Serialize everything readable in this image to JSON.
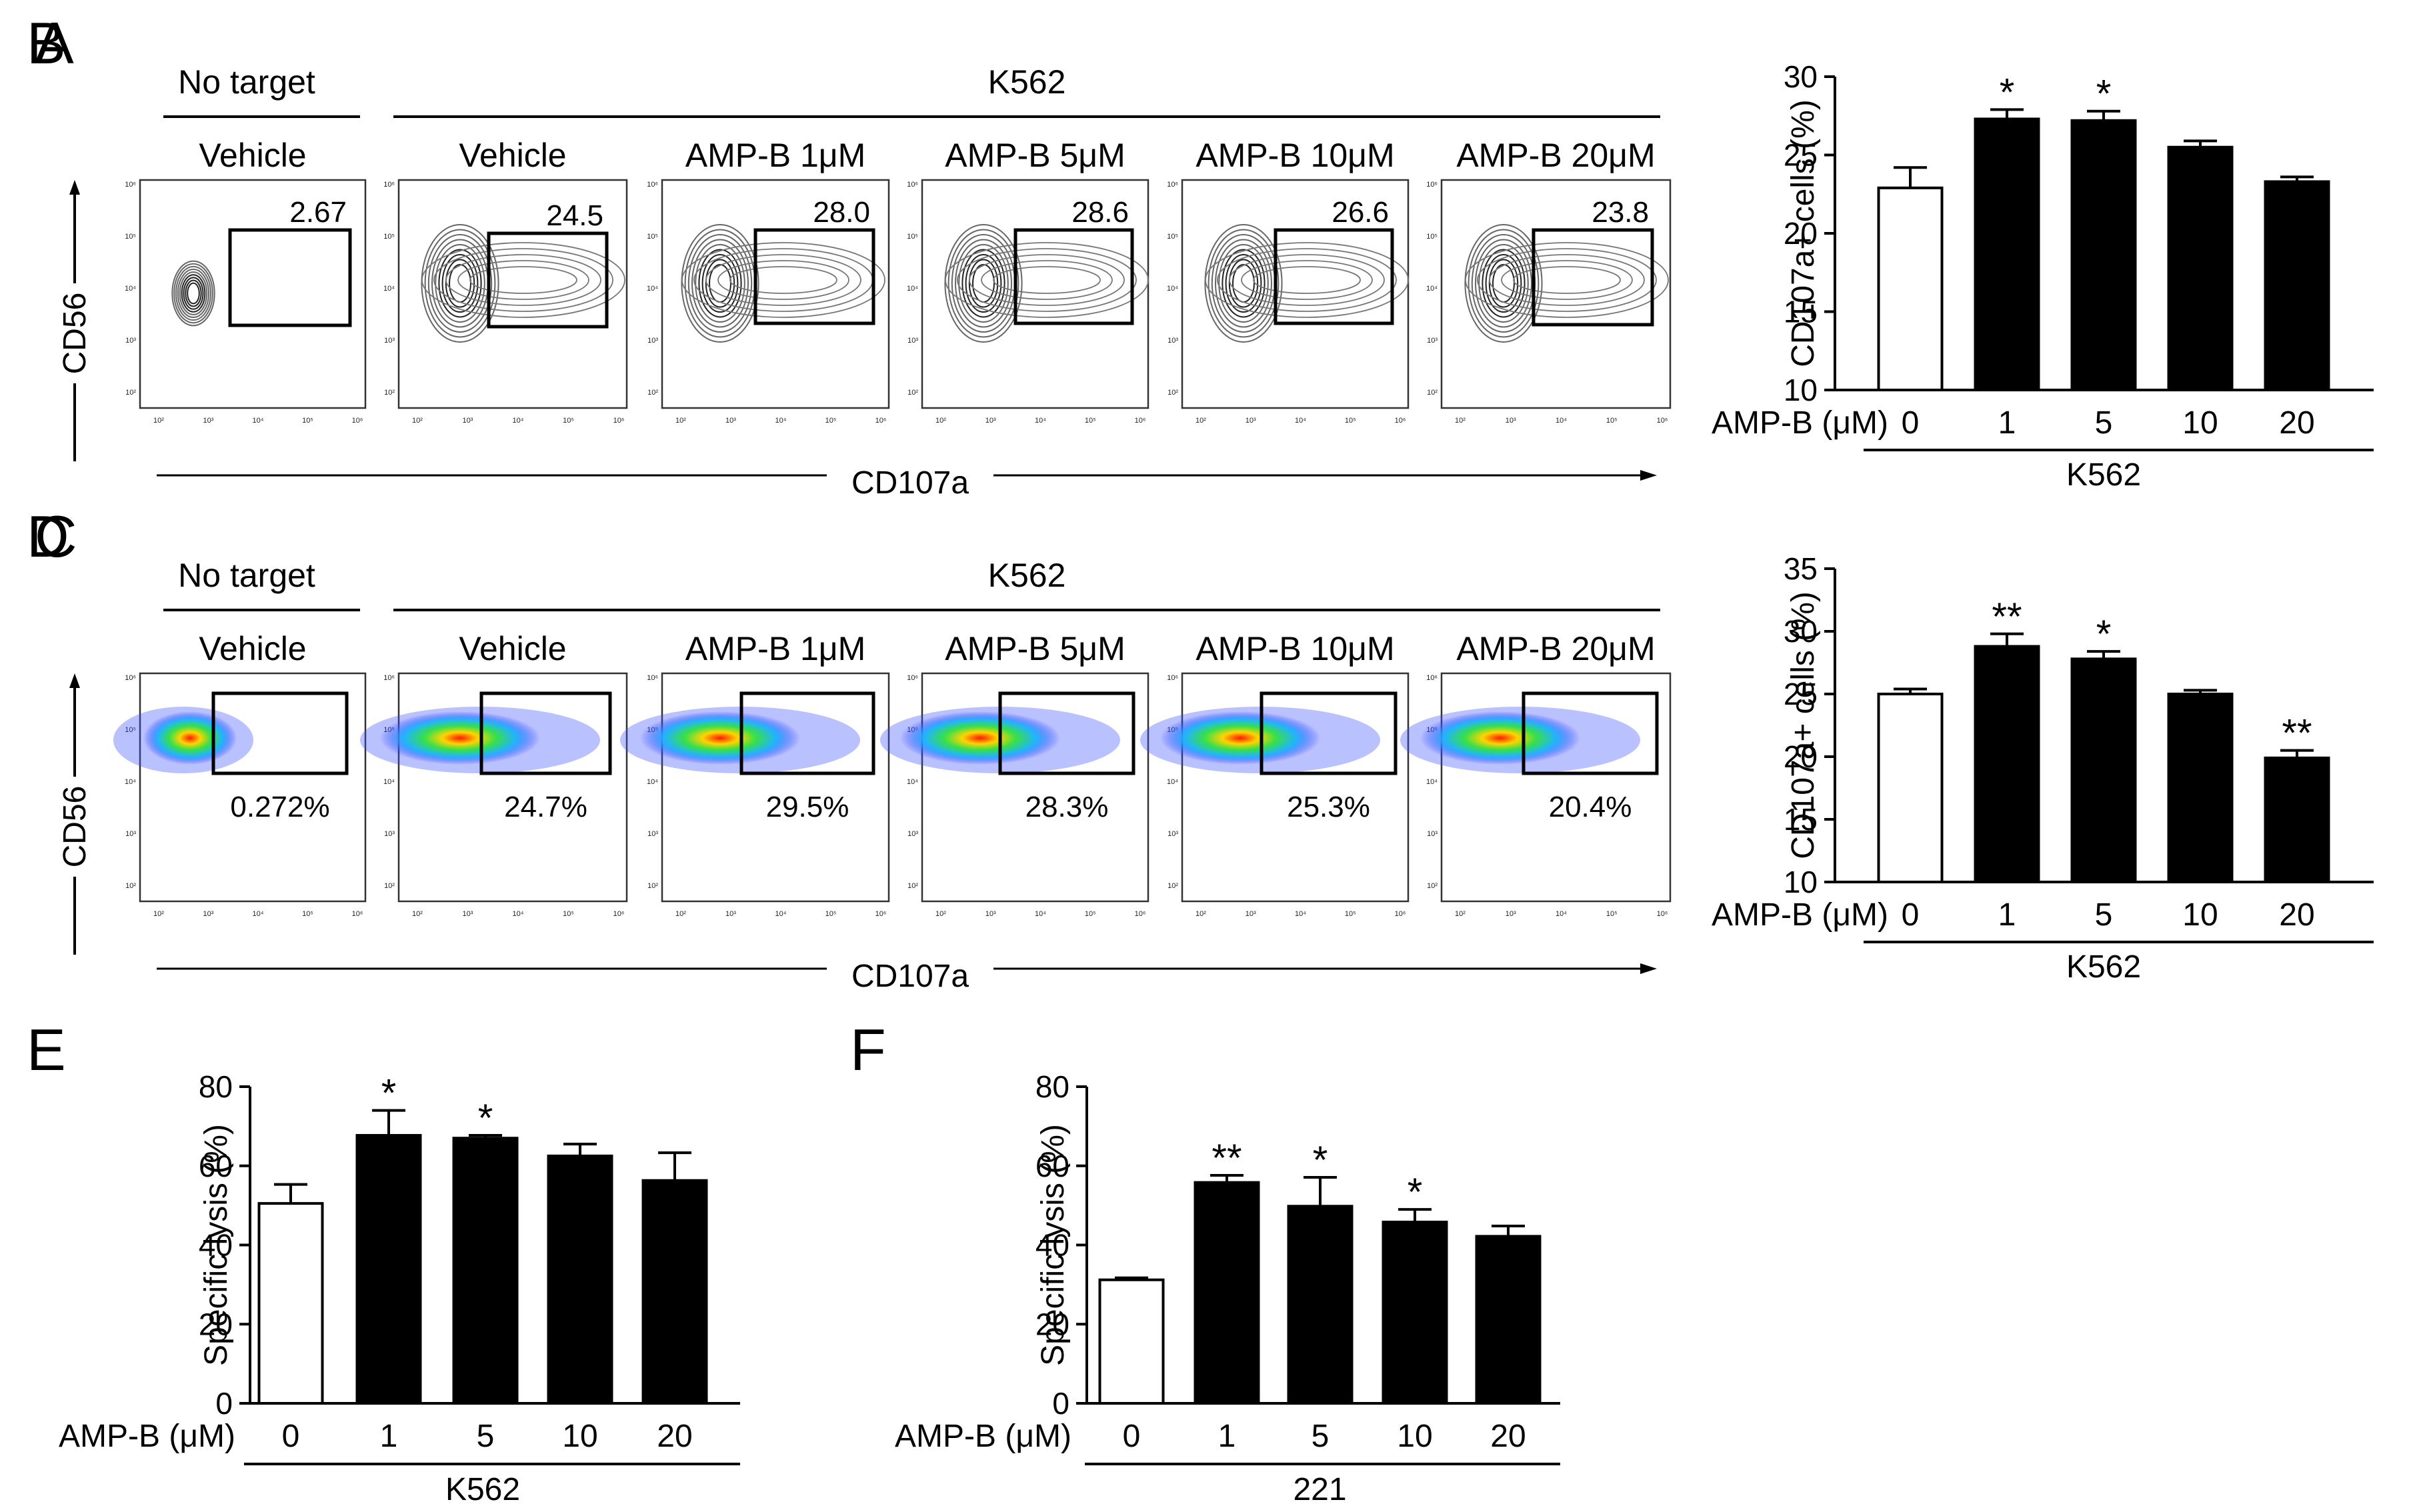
{
  "panels": [
    {
      "id": "A",
      "type": "flow",
      "plot": "contour",
      "headers": {
        "no_target": "No target",
        "target": "K562"
      },
      "columns": [
        "Vehicle",
        "Vehicle",
        "AMP-B 1μM",
        "AMP-B 5μM",
        "AMP-B 10μM",
        "AMP-B 20μM"
      ],
      "values": [
        "2.67",
        "24.5",
        "28.0",
        "28.6",
        "26.6",
        "23.8"
      ],
      "y_axis": "CD56",
      "x_axis": "CD107a",
      "ticks": [
        "10²",
        "10³",
        "10⁴",
        "10⁵",
        "10⁶"
      ]
    },
    {
      "id": "C",
      "type": "flow",
      "plot": "pseudocolor",
      "headers": {
        "no_target": "No target",
        "target": "K562"
      },
      "columns": [
        "Vehicle",
        "Vehicle",
        "AMP-B 1μM",
        "AMP-B 5μM",
        "AMP-B 10μM",
        "AMP-B 20μM"
      ],
      "values": [
        "0.272%",
        "24.7%",
        "29.5%",
        "28.3%",
        "25.3%",
        "20.4%"
      ],
      "y_axis": "CD56",
      "x_axis": "CD107a",
      "ticks": [
        "10²",
        "10³",
        "10⁴",
        "10⁵",
        "10⁶"
      ]
    }
  ],
  "chart_data": [
    {
      "id": "B",
      "type": "bar",
      "xlabel": "AMP-B (μM)",
      "group_label": "K562",
      "ylabel": "CD107a+ cells (%)",
      "categories": [
        "0",
        "1",
        "5",
        "10",
        "20"
      ],
      "values": [
        22.9,
        27.3,
        27.2,
        25.5,
        23.3
      ],
      "errors": [
        1.3,
        0.6,
        0.6,
        0.4,
        0.3
      ],
      "significance": [
        "",
        "*",
        "*",
        "",
        ""
      ],
      "ylim": [
        10,
        30
      ],
      "yticks": [
        "10",
        "15",
        "20",
        "25",
        "30"
      ],
      "colors": [
        "#ffffff",
        "#000000",
        "#000000",
        "#000000",
        "#000000"
      ]
    },
    {
      "id": "D",
      "type": "bar",
      "xlabel": "AMP-B (μM)",
      "group_label": "K562",
      "ylabel": "CD107a+ cells (%)",
      "categories": [
        "0",
        "1",
        "5",
        "10",
        "20"
      ],
      "values": [
        25.0,
        28.8,
        27.8,
        25.0,
        19.9
      ],
      "errors": [
        0.4,
        1.0,
        0.6,
        0.3,
        0.6
      ],
      "significance": [
        "",
        "**",
        "*",
        "",
        "**"
      ],
      "ylim": [
        10,
        35
      ],
      "yticks": [
        "10",
        "15",
        "20",
        "25",
        "30",
        "35"
      ],
      "colors": [
        "#ffffff",
        "#000000",
        "#000000",
        "#000000",
        "#000000"
      ]
    },
    {
      "id": "E",
      "type": "bar",
      "xlabel": "AMP-B (μM)",
      "group_label": "K562",
      "ylabel": "Specific lysis (%)",
      "categories": [
        "0",
        "1",
        "5",
        "10",
        "20"
      ],
      "values": [
        50.5,
        67.7,
        67.0,
        62.5,
        56.3
      ],
      "errors": [
        4.8,
        6.3,
        0.7,
        3.0,
        7.0
      ],
      "significance": [
        "",
        "*",
        "*",
        "",
        ""
      ],
      "ylim": [
        0,
        80
      ],
      "yticks": [
        "0",
        "20",
        "40",
        "60",
        "80"
      ],
      "colors": [
        "#ffffff",
        "#000000",
        "#000000",
        "#000000",
        "#000000"
      ]
    },
    {
      "id": "F",
      "type": "bar",
      "xlabel": "AMP-B (μM)",
      "group_label": "221",
      "ylabel": "Specific lysis (%)",
      "categories": [
        "0",
        "1",
        "5",
        "10",
        "20"
      ],
      "values": [
        31.2,
        55.8,
        49.8,
        45.8,
        42.2
      ],
      "errors": [
        0.5,
        1.8,
        7.3,
        3.2,
        2.6
      ],
      "significance": [
        "",
        "**",
        "*",
        "*",
        ""
      ],
      "ylim": [
        0,
        80
      ],
      "yticks": [
        "0",
        "20",
        "40",
        "60",
        "80"
      ],
      "colors": [
        "#ffffff",
        "#000000",
        "#000000",
        "#000000",
        "#000000"
      ]
    }
  ]
}
